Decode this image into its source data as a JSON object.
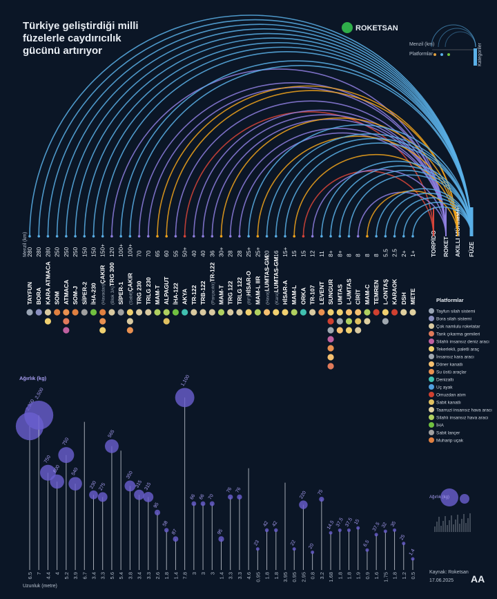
{
  "chart_data": {
    "type": "arc-infographic",
    "title": [
      "Türkiye geliştirdiği milli",
      "füzelerle caydırıcılık",
      "gücünü artırıyor"
    ],
    "brand": "ROKETSAN",
    "mini_legend": [
      "Menzil (km)",
      "Platformlar",
      "Kategoriler"
    ],
    "range_label": "Menzil (km)",
    "weight_label": "Ağırlık (kg)",
    "length_label": "Uzunluk (metre)",
    "source": "Kaynak: Roketsan",
    "date": "17.06.2025",
    "agency": "AA",
    "platform_title": "Platformlar",
    "categories": [
      {
        "name": "FÜZE",
        "color": "#5ab0e8"
      },
      {
        "name": "AKILLI MÜHİMMAT",
        "color": "#f2a51c"
      },
      {
        "name": "ROKET",
        "color": "#8f7fe0"
      },
      {
        "name": "TORPİDO",
        "color": "#d9453a"
      }
    ],
    "platforms": [
      {
        "name": "Tayfun silah sistemi",
        "color": "#9aa5b5"
      },
      {
        "name": "Bora silah sistemi",
        "color": "#8a8fc0"
      },
      {
        "name": "Çok namlulu roketatar",
        "color": "#d9c9a0"
      },
      {
        "name": "Tank çıkarma gemileri",
        "color": "#e07a5a"
      },
      {
        "name": "Silahlı insansız deniz aracı",
        "color": "#c060a0"
      },
      {
        "name": "Tekerlekli, paletli araç",
        "color": "#f0d070"
      },
      {
        "name": "İnsansız kara aracı",
        "color": "#a0a8b0"
      },
      {
        "name": "Döner kanatlı",
        "color": "#f5c070"
      },
      {
        "name": "Su üstü araçlar",
        "color": "#e89050"
      },
      {
        "name": "Denizaltı",
        "color": "#40c0b0"
      },
      {
        "name": "Uç ayak",
        "color": "#50a0e0"
      },
      {
        "name": "Omuzdan atım",
        "color": "#d04030"
      },
      {
        "name": "Sabit kanatlı",
        "color": "#e0c060"
      },
      {
        "name": "Taarruzi insansız hava aracı",
        "color": "#e0d0a0"
      },
      {
        "name": "Silahlı insansız hava aracı",
        "color": "#b0d060"
      },
      {
        "name": "İHA",
        "color": "#70c040"
      },
      {
        "name": "Sabit lançer",
        "color": "#a0a0a0"
      },
      {
        "name": "Muharip uçak",
        "color": "#e08040"
      }
    ],
    "missiles": [
      {
        "name": "TAYFUN",
        "range": "280",
        "length": 6.5,
        "weight": 2300,
        "weight_label": "2,300",
        "category": 0,
        "platforms": [
          0
        ]
      },
      {
        "name": "BORA",
        "range": "280",
        "length": 7,
        "weight": 2500,
        "weight_label": "2,500",
        "category": 0,
        "platforms": [
          1
        ]
      },
      {
        "name": "KARA ATMACA",
        "range": "280",
        "length": 4.4,
        "weight": 750,
        "category": 0,
        "platforms": [
          2,
          5
        ]
      },
      {
        "name": "SOM",
        "range": "250",
        "length": 4,
        "weight": 600,
        "category": 0,
        "platforms": [
          17
        ]
      },
      {
        "name": "ATMACA",
        "range": "250",
        "length": 5.2,
        "weight": 750,
        "category": 0,
        "platforms": [
          8,
          3,
          4
        ]
      },
      {
        "name": "SOM-J",
        "range": "250",
        "length": 3.9,
        "weight": 540,
        "category": 0,
        "platforms": [
          17
        ]
      },
      {
        "name": "SİPER-2",
        "range": "150",
        "length": 6.7,
        "category": 0,
        "platforms": [
          16
        ]
      },
      {
        "name": "İHA-230",
        "range": "150",
        "length": 3.4,
        "weight": 230,
        "category": 0,
        "platforms": [
          15
        ]
      },
      {
        "name": "ÇAKIR",
        "note": "(Havadan)",
        "range": "150+",
        "length": 3.3,
        "weight": 275,
        "category": 0,
        "platforms": [
          17,
          8,
          5
        ]
      },
      {
        "name": "TRG 300",
        "note": "(Blok 3A)",
        "range": "120",
        "length": 5.6,
        "weight": 565,
        "category": 2,
        "platforms": [
          2
        ]
      },
      {
        "name": "SİPER-1",
        "range": "100+",
        "length": 5.4,
        "category": 0,
        "platforms": [
          16
        ]
      },
      {
        "name": "ÇAKIR",
        "note": "(Sabit)",
        "range": "100+",
        "length": 3.8,
        "weight": 350,
        "category": 0,
        "platforms": [
          5,
          2,
          8
        ]
      },
      {
        "name": "TRG 230",
        "range": "70",
        "length": 3.4,
        "weight": 315,
        "category": 2,
        "platforms": [
          2
        ]
      },
      {
        "name": "TRLG 230",
        "range": "70",
        "length": 3.3,
        "weight": 315,
        "category": 2,
        "platforms": [
          2
        ]
      },
      {
        "name": "MAM-T",
        "range": "65",
        "length": 2.6,
        "weight": 95,
        "category": 1,
        "platforms": [
          14
        ]
      },
      {
        "name": "ALPAGUT",
        "range": "60",
        "length": 1.8,
        "weight": 58,
        "category": 1,
        "platforms": [
          14,
          12
        ]
      },
      {
        "name": "İHA-122",
        "range": "55",
        "length": 1.4,
        "weight": 87,
        "category": 2,
        "platforms": [
          15
        ]
      },
      {
        "name": "AKYA",
        "range": "50+",
        "length": 7.8,
        "weight": 1100,
        "weight_label": "1,100",
        "category": 3,
        "platforms": [
          9
        ]
      },
      {
        "name": "TR-122",
        "range": "40",
        "length": 3,
        "weight": 66,
        "category": 2,
        "platforms": [
          2
        ]
      },
      {
        "name": "TRB-122",
        "range": "40",
        "length": 3,
        "weight": 66,
        "category": 2,
        "platforms": [
          2
        ]
      },
      {
        "name": "TR-122",
        "note": "(Parçacıklı)",
        "range": "36",
        "length": 3,
        "weight": 70,
        "category": 2,
        "platforms": [
          2
        ]
      },
      {
        "name": "MAM-T",
        "range": "30+",
        "length": 1.4,
        "weight": 95,
        "category": 1,
        "platforms": [
          14
        ]
      },
      {
        "name": "TRG 122",
        "range": "28",
        "length": 3.3,
        "weight": 76,
        "category": 2,
        "platforms": [
          2
        ]
      },
      {
        "name": "TRLG 122",
        "range": "28",
        "length": 3.3,
        "weight": 76,
        "category": 2,
        "platforms": [
          2
        ]
      },
      {
        "name": "HİSAR-O",
        "note": "(RF)",
        "range": "25+",
        "length": 4.6,
        "category": 0,
        "platforms": [
          5
        ]
      },
      {
        "name": "MAM-L IIR",
        "range": "25+",
        "length": 0.95,
        "weight": 23,
        "category": 1,
        "platforms": [
          14
        ]
      },
      {
        "name": "LUMTAS-GM",
        "note": "(Hava)",
        "range": "20",
        "length": 1.8,
        "weight": 42,
        "category": 0,
        "platforms": [
          7
        ]
      },
      {
        "name": "LUMTAS-GM",
        "note": "(Kara)",
        "range": "16",
        "length": 1.8,
        "weight": 42,
        "category": 0,
        "platforms": [
          5
        ]
      },
      {
        "name": "HİSAR-A",
        "range": "15+",
        "length": 3.95,
        "category": 0,
        "platforms": [
          5
        ]
      },
      {
        "name": "MAM-L",
        "range": "15",
        "length": 0.95,
        "weight": 22,
        "category": 1,
        "platforms": [
          14
        ]
      },
      {
        "name": "ORKA",
        "range": "15",
        "length": 2.95,
        "weight": 220,
        "category": 3,
        "platforms": [
          9
        ]
      },
      {
        "name": "TR-107",
        "range": "12",
        "length": 0.8,
        "weight": 20,
        "category": 2,
        "platforms": [
          2
        ]
      },
      {
        "name": "LEVENT",
        "range": "11",
        "length": 3.2,
        "weight": 75,
        "category": 0,
        "platforms": [
          8
        ]
      },
      {
        "name": "SUNGUR",
        "range": "8+",
        "length": 1.68,
        "weight": 14.5,
        "category": 0,
        "platforms": [
          5,
          11,
          6,
          4,
          8,
          7,
          3
        ]
      },
      {
        "name": "UMTAS",
        "range": "8+",
        "length": 1.8,
        "weight": 37.5,
        "category": 0,
        "platforms": [
          5,
          6,
          7
        ]
      },
      {
        "name": "L-UMTAS",
        "range": "8",
        "length": 1.8,
        "weight": 37.5,
        "category": 0,
        "platforms": [
          7,
          14,
          5
        ]
      },
      {
        "name": "CİRİT",
        "range": "8",
        "length": 1.9,
        "weight": 15,
        "category": 2,
        "platforms": [
          7,
          12,
          2
        ]
      },
      {
        "name": "MAM-C",
        "range": "8",
        "length": 0.9,
        "weight": 6.5,
        "category": 1,
        "platforms": [
          14,
          13
        ]
      },
      {
        "name": "TEMREN",
        "range": "8",
        "length": 1.6,
        "weight": 37.5,
        "category": 0,
        "platforms": [
          11
        ]
      },
      {
        "name": "L-ONTAŞ",
        "range": "5.5",
        "length": 1.75,
        "weight": 32,
        "category": 0,
        "platforms": [
          5,
          6
        ]
      },
      {
        "name": "KARAOK",
        "range": "2.5",
        "length": 1.8,
        "weight": 35,
        "category": 0,
        "platforms": [
          11
        ]
      },
      {
        "name": "DSH",
        "range": "2+",
        "length": 1.2,
        "weight": 25,
        "category": 0,
        "platforms": [
          13
        ]
      },
      {
        "name": "METE",
        "range": "1+",
        "length": 0.5,
        "weight": 1.4,
        "category": 0,
        "platforms": [
          13
        ]
      }
    ]
  }
}
